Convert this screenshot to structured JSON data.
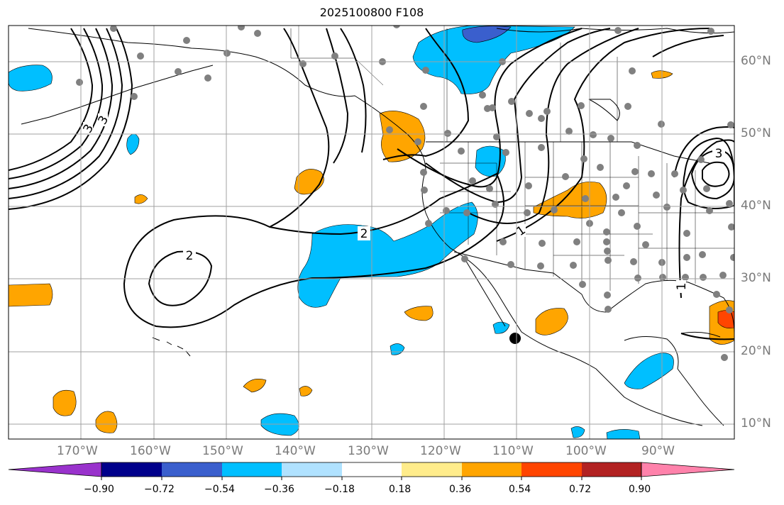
{
  "title": "2025100800 F108",
  "lon_labels": [
    "170°W",
    "160°W",
    "150°W",
    "140°W",
    "130°W",
    "120°W",
    "110°W",
    "100°W",
    "90°W"
  ],
  "lat_labels": [
    "60°N",
    "50°N",
    "40°N",
    "30°N",
    "20°N",
    "10°N"
  ],
  "contour_labels": [
    "2",
    "2",
    "3",
    "1",
    "1",
    "3",
    "3"
  ],
  "colorbar": {
    "colors": [
      "#9932cc",
      "#00008b",
      "#3a5fcd",
      "#00bfff",
      "#b0e2ff",
      "#ffffff",
      "#ffec8b",
      "#ffa500",
      "#ff4500",
      "#b22222",
      "#ff82ab"
    ],
    "ticks": [
      "−0.90",
      "−0.72",
      "−0.54",
      "−0.36",
      "−0.18",
      "0.18",
      "0.36",
      "0.54",
      "0.72",
      "0.90"
    ]
  },
  "colors": {
    "grid": "#a0a0a0",
    "coast": "#000000",
    "stations": "#808080",
    "contours": "#000000"
  }
}
